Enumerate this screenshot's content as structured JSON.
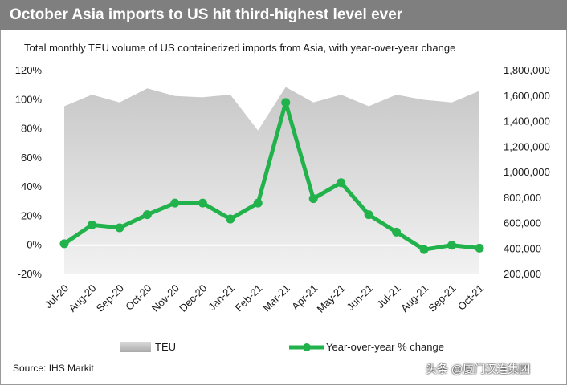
{
  "header": {
    "title": "October Asia imports to US hit third-highest level ever"
  },
  "colors": {
    "header_bg": "#7f7f7f",
    "line": "#21b24b",
    "area_top": "#c8c8c8",
    "area_bottom": "#f2f2f2"
  },
  "chart_data": {
    "type": "line+area",
    "title": "Total monthly TEU volume of US containerized imports from Asia, with year-over-year change",
    "categories": [
      "Jul-20",
      "Aug-20",
      "Sep-20",
      "Oct-20",
      "Nov-20",
      "Dec-20",
      "Jan-21",
      "Feb-21",
      "Mar-21",
      "Apr-21",
      "May-21",
      "Jun-21",
      "Jul-21",
      "Aug-21",
      "Sep-21",
      "Oct-21"
    ],
    "series": [
      {
        "name": "TEU",
        "kind": "area",
        "axis": "right",
        "values": [
          1520000,
          1610000,
          1550000,
          1660000,
          1600000,
          1590000,
          1610000,
          1330000,
          1670000,
          1550000,
          1610000,
          1520000,
          1610000,
          1570000,
          1550000,
          1640000
        ]
      },
      {
        "name": "Year-over-year % change",
        "kind": "line",
        "axis": "left",
        "values": [
          1,
          14,
          12,
          21,
          29,
          29,
          18,
          29,
          98,
          32,
          43,
          21,
          9,
          -3,
          0,
          -2
        ]
      }
    ],
    "y_left": {
      "min": -20,
      "max": 120,
      "step": 20,
      "ticks": [
        "-20%",
        "0%",
        "20%",
        "40%",
        "60%",
        "80%",
        "100%",
        "120%"
      ]
    },
    "y_right": {
      "min": 200000,
      "max": 1800000,
      "step": 200000,
      "ticks": [
        "200,000",
        "400,000",
        "600,000",
        "800,000",
        "1,000,000",
        "1,200,000",
        "1,400,000",
        "1,600,000",
        "1,800,000"
      ]
    },
    "legend": [
      {
        "label": "TEU"
      },
      {
        "label": "Year-over-year % change"
      }
    ],
    "legend_position": "bottom"
  },
  "footer": {
    "source": "Source: IHS Markit"
  },
  "watermark": {
    "text": "头条 @厦门汉连集团"
  }
}
